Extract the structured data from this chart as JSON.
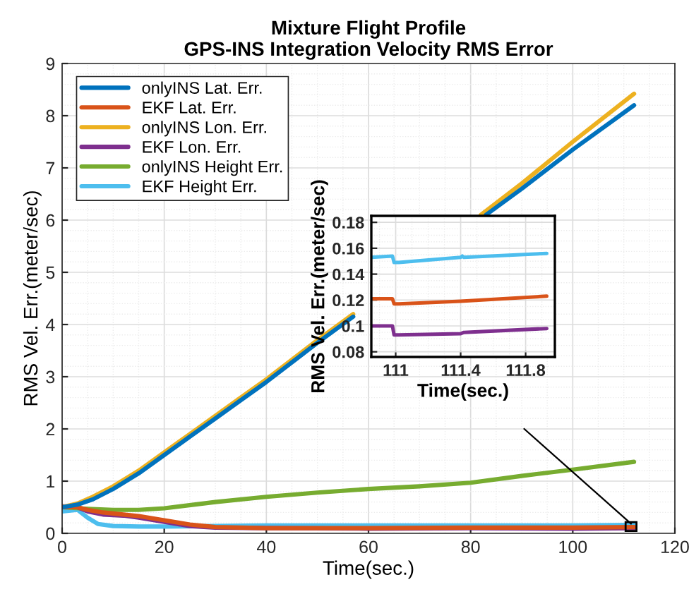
{
  "chart_data": [
    {
      "type": "line",
      "title": "Mixture Flight Profile\nGPS-INS Integration Velocity RMS Error",
      "xlabel": "Time(sec.)",
      "ylabel": "RMS Vel. Err.(meter/sec)",
      "xlim": [
        0,
        120
      ],
      "ylim": [
        0,
        9
      ],
      "xticks": [
        0,
        20,
        40,
        60,
        80,
        100,
        120
      ],
      "yticks": [
        0,
        1,
        2,
        3,
        4,
        5,
        6,
        7,
        8,
        9
      ],
      "grid": true,
      "legend": "top left",
      "series": [
        {
          "name": "onlyINS Lat. Err.",
          "color": "#0072bd",
          "x": [
            0,
            3,
            6,
            10,
            15,
            20,
            25,
            30,
            35,
            40,
            50,
            57,
            70,
            83,
            90,
            100,
            112
          ],
          "values": [
            0.5,
            0.55,
            0.65,
            0.85,
            1.15,
            1.5,
            1.85,
            2.2,
            2.55,
            2.9,
            3.65,
            4.15,
            null,
            6.1,
            6.6,
            7.35,
            8.2
          ]
        },
        {
          "name": "EKF Lat. Err.",
          "color": "#d95319",
          "x": [
            0,
            3,
            5,
            8,
            12,
            15,
            20,
            25,
            30,
            40,
            60,
            80,
            100,
            112
          ],
          "values": [
            0.5,
            0.5,
            0.45,
            0.4,
            0.36,
            0.33,
            0.25,
            0.17,
            0.12,
            0.1,
            0.1,
            0.11,
            0.11,
            0.12
          ]
        },
        {
          "name": "onlyINS Lon. Err.",
          "color": "#edb120",
          "x": [
            0,
            3,
            6,
            10,
            15,
            20,
            25,
            30,
            35,
            40,
            50,
            57,
            70,
            82,
            90,
            100,
            112
          ],
          "values": [
            0.5,
            0.57,
            0.7,
            0.9,
            1.2,
            1.55,
            1.9,
            2.25,
            2.6,
            2.95,
            3.7,
            4.2,
            null,
            6.1,
            6.7,
            7.5,
            8.42
          ]
        },
        {
          "name": "EKF Lon. Err.",
          "color": "#7e2f8e",
          "x": [
            0,
            3,
            5,
            8,
            12,
            15,
            20,
            25,
            30,
            40,
            60,
            80,
            100,
            112
          ],
          "values": [
            0.52,
            0.5,
            0.42,
            0.36,
            0.34,
            0.3,
            0.22,
            0.14,
            0.11,
            0.1,
            0.09,
            0.1,
            0.09,
            0.1
          ]
        },
        {
          "name": "onlyINS Height Err.",
          "color": "#77ac30",
          "x": [
            0,
            5,
            10,
            15,
            20,
            30,
            40,
            50,
            60,
            70,
            80,
            90,
            100,
            112
          ],
          "values": [
            0.5,
            0.47,
            0.45,
            0.45,
            0.48,
            0.6,
            0.7,
            0.78,
            0.85,
            0.9,
            0.97,
            1.1,
            1.22,
            1.37
          ]
        },
        {
          "name": "EKF Height Err.",
          "color": "#4dbeee",
          "x": [
            0,
            3,
            5,
            7,
            10,
            15,
            20,
            30,
            40,
            60,
            80,
            100,
            112
          ],
          "values": [
            0.42,
            0.45,
            0.3,
            0.18,
            0.14,
            0.13,
            0.13,
            0.14,
            0.15,
            0.15,
            0.15,
            0.15,
            0.16
          ]
        }
      ]
    },
    {
      "type": "line",
      "xlabel": "Time(sec.)",
      "ylabel": "RMS Vel. Err.(meter/sec)",
      "xlim": [
        110.85,
        111.98
      ],
      "ylim": [
        0.076,
        0.185
      ],
      "xticks": [
        111,
        111.4,
        111.8
      ],
      "yticks": [
        0.08,
        0.1,
        0.12,
        0.14,
        0.16,
        0.18
      ],
      "grid": true,
      "series": [
        {
          "color": "#4dbeee",
          "x": [
            110.85,
            110.98,
            110.99,
            111.02,
            111.4,
            111.41,
            111.42,
            111.93
          ],
          "values": [
            0.153,
            0.154,
            0.149,
            0.149,
            0.153,
            0.154,
            0.153,
            0.156
          ]
        },
        {
          "color": "#d95319",
          "x": [
            110.85,
            110.98,
            110.99,
            111.02,
            111.4,
            111.93
          ],
          "values": [
            0.121,
            0.121,
            0.117,
            0.117,
            0.119,
            0.123
          ]
        },
        {
          "color": "#7e2f8e",
          "x": [
            110.85,
            110.98,
            110.99,
            111.02,
            111.4,
            111.42,
            111.93
          ],
          "values": [
            0.1,
            0.1,
            0.093,
            0.093,
            0.094,
            0.095,
            0.098
          ]
        }
      ]
    }
  ]
}
